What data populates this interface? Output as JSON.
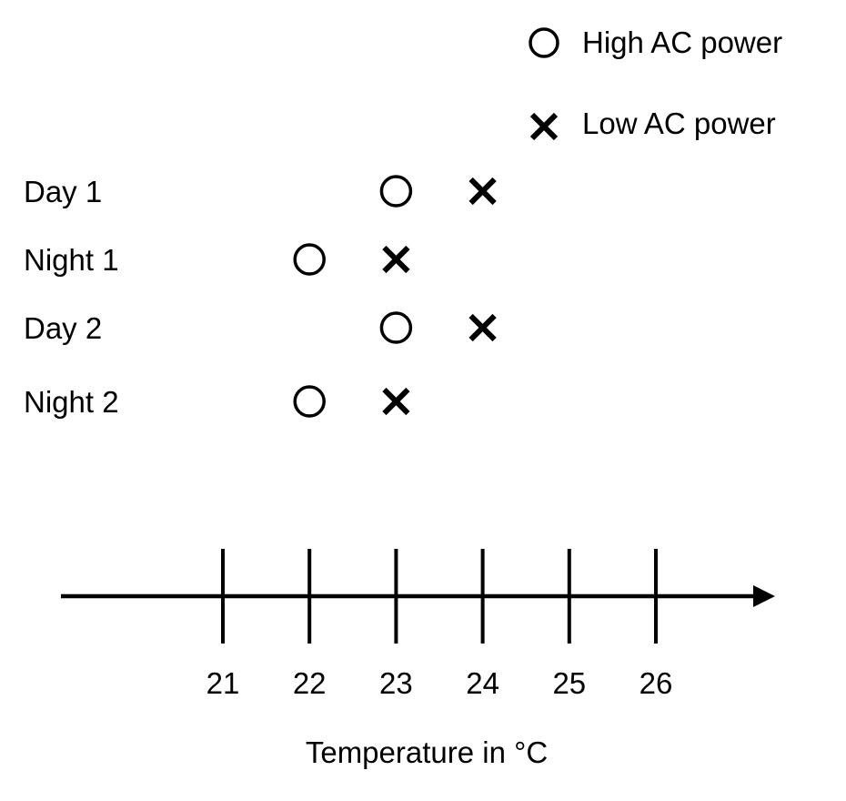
{
  "chart_data": {
    "type": "scatter",
    "xlabel": "Temperature in °C",
    "ylabel": "",
    "title": "",
    "x_ticks": [
      21,
      22,
      23,
      24,
      25,
      26
    ],
    "categories": [
      "Day 1",
      "Night 1",
      "Day 2",
      "Night 2"
    ],
    "series": [
      {
        "name": "High AC power",
        "marker": "circle",
        "values": [
          23,
          22,
          23,
          22
        ]
      },
      {
        "name": "Low AC power",
        "marker": "cross",
        "values": [
          24,
          23,
          24,
          23
        ]
      }
    ],
    "legend_position": "top-right",
    "grid": false,
    "colors": {
      "ink": "#000000",
      "background": "#ffffff"
    }
  }
}
